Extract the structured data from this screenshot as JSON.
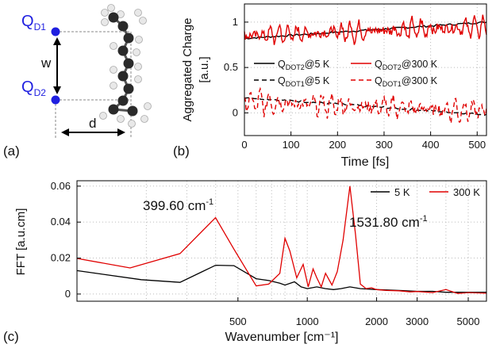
{
  "panel_labels": {
    "a": "(a)",
    "b": "(b)",
    "c": "(c)"
  },
  "colors": {
    "dot": "#1f1fe0",
    "black": "#000000",
    "red": "#e00000",
    "atom_dark": "#2a2a2a",
    "atom_light": "#e8e8e8"
  },
  "panel_a": {
    "q1": {
      "main": "Q",
      "sub": "D1"
    },
    "q2": {
      "main": "Q",
      "sub": "D2"
    },
    "w_label": "w",
    "d_label": "d"
  },
  "chart_data": [
    {
      "type": "line",
      "xlabel": "Time [fs]",
      "ylabel": [
        "Aggregated Charge",
        "[a.u.]"
      ],
      "xlim": [
        0,
        520
      ],
      "ylim": [
        -0.25,
        1.2
      ],
      "xticks": [
        0,
        100,
        200,
        300,
        400,
        500
      ],
      "yticks": [
        0,
        0.5,
        1
      ],
      "grid": true,
      "legend_position": "center",
      "series": [
        {
          "name": "Q_DOT2@5 K",
          "main": "Q",
          "sub": "DOT2",
          "suffix": "@5 K",
          "color": "#000000",
          "dash": "solid",
          "kind": "drift",
          "start": 0.82,
          "end": 1.0,
          "noise": 0.02
        },
        {
          "name": "Q_DOT1@5 K",
          "main": "Q",
          "sub": "DOT1",
          "suffix": "@5 K",
          "color": "#000000",
          "dash": "dashed",
          "kind": "drift",
          "start": 0.17,
          "end": -0.02,
          "noise": 0.02
        },
        {
          "name": "Q_DOT2@300 K",
          "main": "Q",
          "sub": "DOT2",
          "suffix": "@300 K",
          "color": "#e00000",
          "dash": "solid",
          "kind": "osc",
          "start": 0.85,
          "end": 0.95,
          "amp": 0.11
        },
        {
          "name": "Q_DOT1@300 K",
          "main": "Q",
          "sub": "DOT1",
          "suffix": "@300 K",
          "color": "#e00000",
          "dash": "dashed",
          "kind": "osc",
          "start": 0.12,
          "end": 0.02,
          "amp": 0.12
        }
      ]
    },
    {
      "type": "line",
      "xlabel": "Wavenumber [cm⁻¹]",
      "ylabel": "FFT [a.u.cm]",
      "xscale": "log",
      "xlim": [
        100,
        6000
      ],
      "ylim": [
        -0.004,
        0.063
      ],
      "xticks": [
        500,
        1000,
        2000,
        3000,
        5000
      ],
      "yticks": [
        0,
        0.02,
        0.04,
        0.06
      ],
      "grid": true,
      "legend_position": "top-right",
      "annotations": [
        {
          "text": "399.60 cm",
          "sup": "-1",
          "x": 399.6,
          "y": 0.0425
        },
        {
          "text": "1531.80 cm",
          "sup": "-1",
          "x": 1531.8,
          "y": 0.06
        }
      ],
      "series": [
        {
          "name": "5 K",
          "color": "#000000",
          "x": [
            100,
            190,
            280,
            400,
            480,
            600,
            680,
            760,
            800,
            880,
            940,
            1000,
            1100,
            1200,
            1300,
            1400,
            1531.8,
            1700,
            2000,
            2500,
            3000,
            3500,
            4000,
            5000,
            6000
          ],
          "y": [
            0.013,
            0.008,
            0.0065,
            0.016,
            0.0158,
            0.0085,
            0.0075,
            0.006,
            0.005,
            0.0068,
            0.004,
            0.003,
            0.004,
            0.003,
            0.0025,
            0.003,
            0.004,
            0.003,
            0.0025,
            0.002,
            0.0015,
            0.0015,
            0.001,
            0.001,
            0.001
          ]
        },
        {
          "name": "300 K",
          "color": "#e00000",
          "x": [
            100,
            170,
            280,
            399.6,
            480,
            600,
            680,
            760,
            800,
            840,
            900,
            960,
            1010,
            1060,
            1100,
            1150,
            1200,
            1280,
            1350,
            1430,
            1531.8,
            1620,
            1700,
            1800,
            1900,
            2000,
            2200,
            2500,
            2800,
            3000,
            3500,
            4000,
            4500,
            5000,
            6000
          ],
          "y": [
            0.0198,
            0.0145,
            0.0225,
            0.0425,
            0.025,
            0.0045,
            0.0055,
            0.0115,
            0.031,
            0.024,
            0.009,
            0.0165,
            0.004,
            0.014,
            0.009,
            0.004,
            0.0115,
            0.005,
            0.0125,
            0.03,
            0.06,
            0.033,
            0.0055,
            0.003,
            0.0035,
            0.0025,
            0.002,
            0.0018,
            0.0012,
            0.0014,
            0.0008,
            0.0025,
            0.0003,
            0.0008,
            0.0005
          ]
        }
      ]
    }
  ]
}
